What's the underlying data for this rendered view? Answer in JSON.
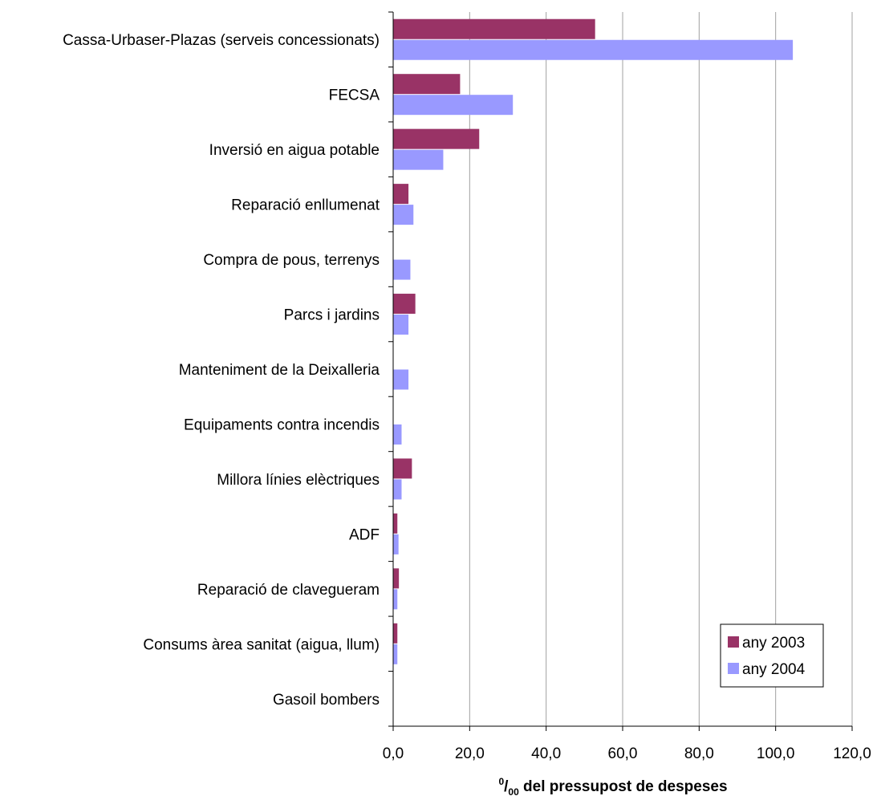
{
  "chart_data": {
    "type": "bar",
    "orientation": "horizontal",
    "categories": [
      "Cassa-Urbaser-Plazas (serveis concessionats)",
      "FECSA",
      "Inversió en aigua potable",
      "Reparació enllumenat",
      "Compra de pous, terrenys",
      "Parcs i jardins",
      "Manteniment de la Deixalleria",
      "Equipaments contra incendis",
      "Millora línies elèctriques",
      "ADF",
      "Reparació de clavegueram",
      "Consums àrea sanitat (aigua, llum)",
      "Gasoil bombers"
    ],
    "series": [
      {
        "name": "any 2003",
        "color": "#993366",
        "values": [
          52.8,
          17.5,
          22.5,
          4.0,
          0,
          5.8,
          0,
          0,
          4.9,
          1.1,
          1.5,
          1.1,
          0
        ]
      },
      {
        "name": "any 2004",
        "color": "#9999ff",
        "values": [
          104.5,
          31.3,
          13.1,
          5.3,
          4.5,
          4.0,
          4.0,
          2.2,
          2.2,
          1.4,
          1.1,
          1.1,
          0
        ]
      }
    ],
    "xlim": [
      0,
      120
    ],
    "xticks": [
      "0,0",
      "20,0",
      "40,0",
      "60,0",
      "80,0",
      "100,0",
      "120,0"
    ],
    "xlabel": {
      "superscript": "0",
      "slash": "/",
      "subscript": "00",
      "text": " del pressupost de despeses"
    },
    "ylabel": "",
    "grid": "vertical",
    "legend_position": "bottom-right"
  }
}
